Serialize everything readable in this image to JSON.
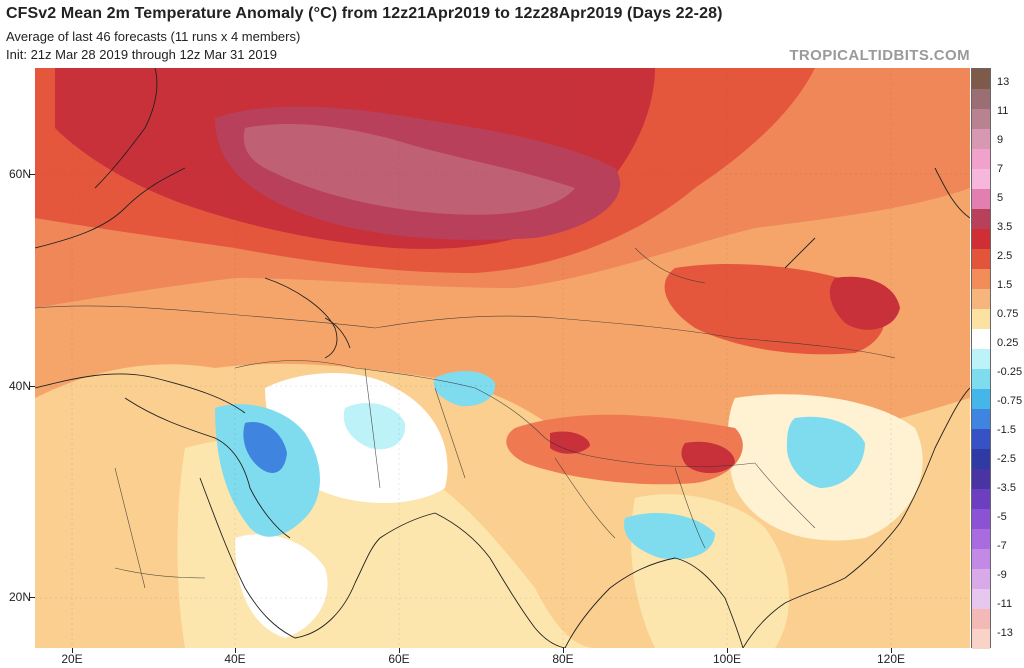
{
  "header": {
    "title": "CFSv2 Mean 2m Temperature Anomaly (°C) from 12z21Apr2019 to 12z28Apr2019 (Days 22-28)",
    "subtitle1": "Average of last 46 forecasts (11 runs x 4 members)",
    "subtitle2": "Init: 21z Mar 28 2019 through 12z Mar 31 2019",
    "brand": "TROPICALTIDBITS.COM"
  },
  "map": {
    "region": "Central/South Asia and Middle East",
    "lon_labels": [
      "20E",
      "40E",
      "60E",
      "80E",
      "100E",
      "120E"
    ],
    "lat_labels": [
      "60N",
      "40N",
      "20N"
    ],
    "features": [
      {
        "name": "siberia-warm-core",
        "anomaly": "3.5 to 5"
      },
      {
        "name": "iraq-cold-spot",
        "anomaly": "-1.5 to -2.5"
      },
      {
        "name": "tibet-warm-spot",
        "anomaly": "2.5 to 3.5"
      },
      {
        "name": "china-cold-spot",
        "anomaly": "-0.25 to -0.75"
      }
    ]
  },
  "colorbar": {
    "labels": [
      "13",
      "11",
      "9",
      "7",
      "5",
      "3.5",
      "2.5",
      "1.5",
      "0.75",
      "0.25",
      "-0.25",
      "-0.75",
      "-1.5",
      "-2.5",
      "-3.5",
      "-5",
      "-7",
      "-9",
      "-11",
      "-13"
    ],
    "colors": [
      "#7e5a4a",
      "#9a6e72",
      "#b98290",
      "#d799b2",
      "#f0a2cc",
      "#f7b6dc",
      "#e27fb0",
      "#b9405a",
      "#cf2f34",
      "#e2553a",
      "#f28d5a",
      "#f5b57d",
      "#fbe1a2",
      "#ffffff",
      "#bdf2f8",
      "#7fdcef",
      "#44b6ea",
      "#3f85df",
      "#3652c4",
      "#2f3aa5",
      "#4a33a3",
      "#6b3fbf",
      "#8b53d4",
      "#a96be0",
      "#c28ae6",
      "#d8aaea",
      "#e6c8ee",
      "#f3b9b6",
      "#f9d3c8"
    ]
  }
}
